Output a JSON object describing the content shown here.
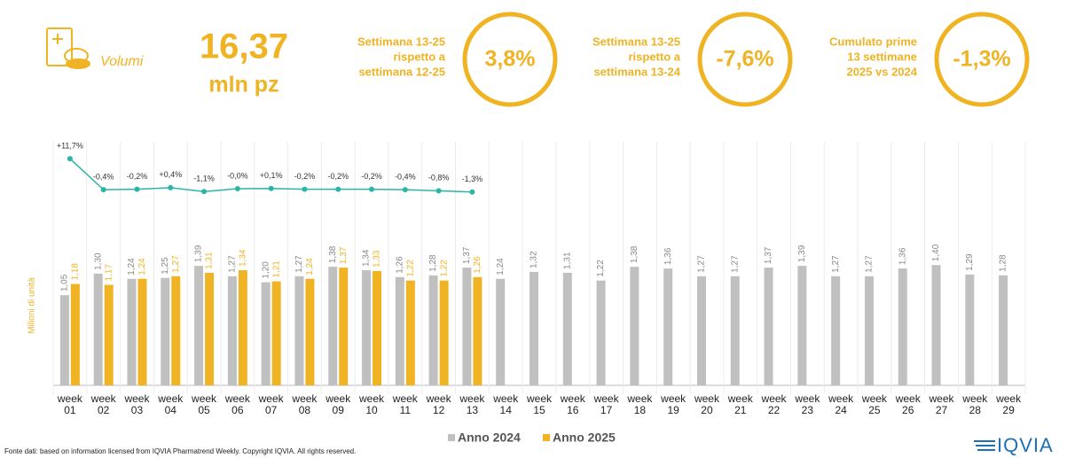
{
  "header": {
    "label": "Volumi",
    "value": "16,37",
    "unit": "mln pz"
  },
  "kpis": [
    {
      "lines": [
        "Settimana 13-25",
        "rispetto a",
        "settimana 12-25"
      ],
      "value": "3,8%"
    },
    {
      "lines": [
        "Settimana 13-25",
        "rispetto a",
        "settimana 13-24"
      ],
      "value": "-7,6%"
    },
    {
      "lines": [
        "Cumulato prime",
        "13 settimane",
        "2025 vs 2024"
      ],
      "value": "-1,3%"
    }
  ],
  "chart_data": {
    "type": "bar",
    "ylabel": "Milioni di unità",
    "categories": [
      "week 01",
      "week 02",
      "week 03",
      "week 04",
      "week 05",
      "week 06",
      "week 07",
      "week 08",
      "week 09",
      "week 10",
      "week 11",
      "week 12",
      "week 13",
      "week 14",
      "week 15",
      "week 16",
      "week 17",
      "week 18",
      "week 19",
      "week 20",
      "week 21",
      "week 22",
      "week 23",
      "week 24",
      "week 25",
      "week 26",
      "week 27",
      "week 28",
      "week 29"
    ],
    "series": [
      {
        "name": "Anno 2024",
        "color": "#c0c0c0",
        "values": [
          1.05,
          1.3,
          1.24,
          1.25,
          1.39,
          1.27,
          1.2,
          1.27,
          1.38,
          1.34,
          1.26,
          1.28,
          1.37,
          1.24,
          1.32,
          1.31,
          1.22,
          1.38,
          1.36,
          1.27,
          1.27,
          1.37,
          1.39,
          1.27,
          1.27,
          1.36,
          1.4,
          1.29,
          1.28
        ],
        "value_labels": [
          "1,05",
          "1,30",
          "1,24",
          "1,25",
          "1,39",
          "1,27",
          "1,20",
          "1,27",
          "1,38",
          "1,34",
          "1,26",
          "1,28",
          "1,37",
          "1,24",
          "1,32",
          "1,31",
          "1,22",
          "1,38",
          "1,36",
          "1,27",
          "1,27",
          "1,37",
          "1,39",
          "1,27",
          "1,27",
          "1,36",
          "1,40",
          "1,29",
          "1,28"
        ]
      },
      {
        "name": "Anno 2025",
        "color": "#f0b323",
        "values": [
          1.18,
          1.17,
          1.24,
          1.27,
          1.31,
          1.34,
          1.21,
          1.24,
          1.37,
          1.33,
          1.22,
          1.22,
          1.26,
          null,
          null,
          null,
          null,
          null,
          null,
          null,
          null,
          null,
          null,
          null,
          null,
          null,
          null,
          null,
          null
        ],
        "value_labels": [
          "1,18",
          "1,17",
          "1,24",
          "1,27",
          "1,31",
          "1,34",
          "1,21",
          "1,24",
          "1,37",
          "1,33",
          "1,22",
          "1,22",
          "1,26",
          null,
          null,
          null,
          null,
          null,
          null,
          null,
          null,
          null,
          null,
          null,
          null,
          null,
          null,
          null,
          null
        ]
      }
    ],
    "growth": {
      "color": "#2bb5a8",
      "values": [
        11.7,
        -0.4,
        -0.2,
        0.4,
        -1.1,
        0,
        0.1,
        -0.2,
        -0.2,
        -0.2,
        -0.4,
        -0.8,
        -1.3,
        null,
        null,
        null,
        null,
        null,
        null,
        null,
        null,
        null,
        null,
        null,
        null,
        null,
        null,
        null,
        null
      ],
      "value_labels": [
        "+11,7%",
        "-0,4%",
        "-0,2%",
        "+0,4%",
        "-1,1%",
        "-0,0%",
        "+0,1%",
        "-0,2%",
        "-0,2%",
        "-0,2%",
        "-0,4%",
        "-0,8%",
        "-1,3%",
        null,
        null,
        null,
        null,
        null,
        null,
        null,
        null,
        null,
        null,
        null,
        null,
        null,
        null,
        null,
        null
      ]
    }
  },
  "footer": "Fonte dati: based on information licensed from IQVIA Pharmatrend Weekly. Copyright IQVIA. All rights reserved.",
  "logo": "IQVIA"
}
